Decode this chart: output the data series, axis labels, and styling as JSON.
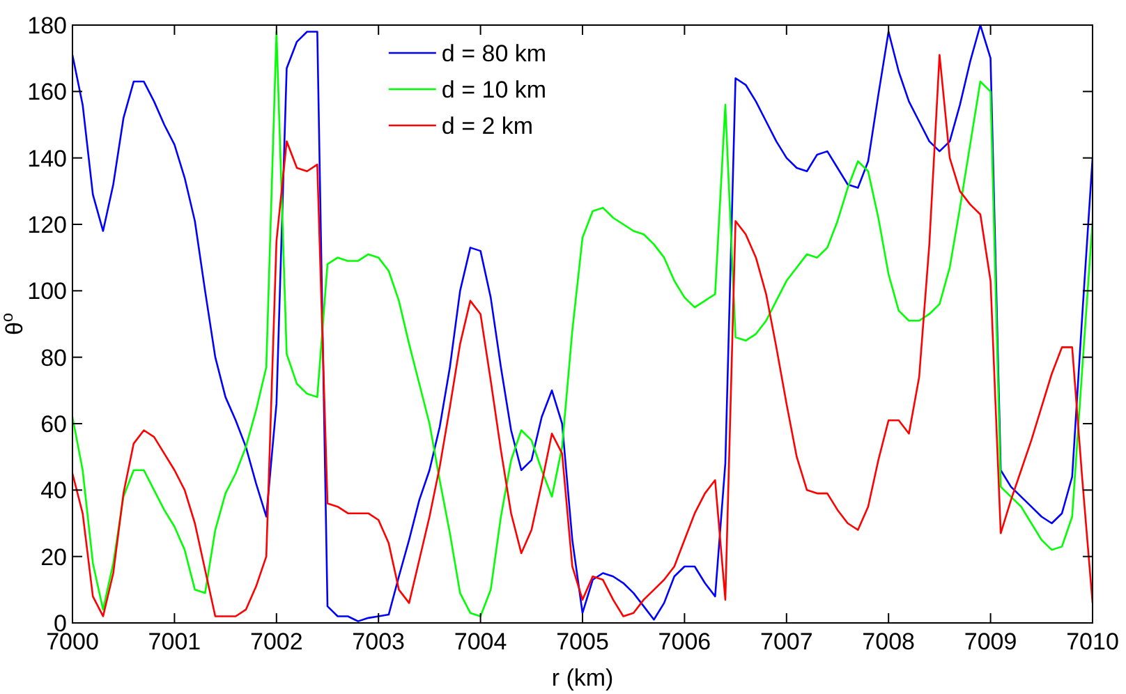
{
  "chart_data": {
    "type": "line",
    "xlabel": "r (km)",
    "ylabel": "θ$^{o}$",
    "x": [
      7000,
      7000.1,
      7000.2,
      7000.3,
      7000.4,
      7000.5,
      7000.6,
      7000.7,
      7000.8,
      7000.9,
      7001,
      7001.1,
      7001.2,
      7001.3,
      7001.4,
      7001.5,
      7001.6,
      7001.7,
      7001.8,
      7001.9,
      7002,
      7002.1,
      7002.2,
      7002.3,
      7002.4,
      7002.5,
      7002.6,
      7002.7,
      7002.8,
      7002.9,
      7003,
      7003.1,
      7003.2,
      7003.3,
      7003.4,
      7003.5,
      7003.6,
      7003.7,
      7003.8,
      7003.9,
      7004,
      7004.1,
      7004.2,
      7004.3,
      7004.4,
      7004.5,
      7004.6,
      7004.7,
      7004.8,
      7004.9,
      7005,
      7005.1,
      7005.2,
      7005.3,
      7005.4,
      7005.5,
      7005.6,
      7005.7,
      7005.8,
      7005.9,
      7006,
      7006.1,
      7006.2,
      7006.3,
      7006.4,
      7006.5,
      7006.6,
      7006.7,
      7006.8,
      7006.9,
      7007,
      7007.1,
      7007.2,
      7007.3,
      7007.4,
      7007.5,
      7007.6,
      7007.7,
      7007.8,
      7007.9,
      7008,
      7008.1,
      7008.2,
      7008.3,
      7008.4,
      7008.5,
      7008.6,
      7008.7,
      7008.8,
      7008.9,
      7009,
      7009.1,
      7009.2,
      7009.3,
      7009.4,
      7009.5,
      7009.6,
      7009.7,
      7009.8,
      7009.9,
      7010
    ],
    "series": [
      {
        "name": "d = 80 km",
        "color": "#0000ff",
        "values": [
          171,
          156,
          129,
          118,
          132,
          152,
          163,
          163,
          157,
          150,
          144,
          134,
          121,
          100,
          80,
          68,
          61,
          53,
          42,
          32,
          66,
          167,
          175,
          178,
          178,
          5,
          2,
          2,
          0.5,
          1.5,
          2,
          2.5,
          14,
          25,
          37,
          46,
          59,
          77,
          100,
          113,
          112,
          98,
          77,
          58,
          46,
          49,
          62,
          70,
          60,
          25,
          3,
          13,
          15,
          14,
          12,
          9,
          5,
          1,
          6,
          14,
          17,
          17,
          12,
          8,
          48,
          164,
          162,
          157,
          151,
          145,
          140,
          137,
          136,
          141,
          142,
          137,
          132,
          131,
          139,
          159,
          178,
          166,
          157,
          151,
          145,
          142,
          145,
          156,
          169,
          180,
          170,
          46,
          41,
          38,
          35,
          32,
          30,
          33,
          44,
          93,
          140
        ]
      },
      {
        "name": "d = 10 km",
        "color": "#00ff00",
        "values": [
          62,
          46,
          18,
          4,
          18,
          38,
          46,
          46,
          40,
          34,
          29,
          22,
          10,
          9,
          28,
          39,
          45,
          53,
          64,
          77,
          178,
          81,
          72,
          69,
          68,
          108,
          110,
          109,
          109,
          111,
          110,
          106,
          97,
          84,
          72,
          60,
          43,
          27,
          9,
          3,
          2,
          10,
          32,
          49,
          58,
          55,
          46,
          38,
          53,
          88,
          116,
          124,
          125,
          122,
          120,
          118,
          117,
          114,
          110,
          103,
          98,
          95,
          97,
          99,
          156,
          86,
          85,
          87,
          91,
          97,
          103,
          107,
          111,
          110,
          113,
          121,
          131,
          139,
          136,
          122,
          105,
          94,
          91,
          91,
          93,
          96,
          107,
          125,
          144,
          163,
          160,
          41,
          38,
          35,
          30,
          25,
          22,
          23,
          32,
          77,
          121
        ]
      },
      {
        "name": "d = 2 km",
        "color": "#ff0000",
        "values": [
          45,
          33,
          8,
          2,
          15,
          39,
          54,
          58,
          56,
          51,
          46,
          40,
          30,
          16,
          2,
          2,
          2,
          4,
          11,
          20,
          115,
          145,
          137,
          136,
          138,
          36,
          35,
          33,
          33,
          33,
          31,
          24,
          10,
          6,
          19,
          32,
          47,
          65,
          84,
          97,
          93,
          73,
          52,
          33,
          21,
          28,
          42,
          57,
          51,
          17,
          7,
          14,
          13,
          7,
          2,
          3,
          7,
          10,
          13,
          17,
          25,
          33,
          39,
          43,
          7,
          121,
          117,
          110,
          99,
          83,
          66,
          50,
          40,
          39,
          39,
          34,
          30,
          28,
          35,
          49,
          61,
          61,
          57,
          74,
          114,
          171,
          140,
          130,
          126,
          123,
          103,
          27,
          37,
          46,
          55,
          65,
          75,
          83,
          83,
          43,
          6
        ]
      }
    ],
    "xlim": [
      7000,
      7010
    ],
    "xticks": [
      7000,
      7001,
      7002,
      7003,
      7004,
      7005,
      7006,
      7007,
      7008,
      7009,
      7010
    ],
    "ylim": [
      0,
      180
    ],
    "yticks": [
      0,
      20,
      40,
      60,
      80,
      100,
      120,
      140,
      160,
      180
    ],
    "legend": "top",
    "grid": false,
    "marker": "none",
    "line_style": "solid"
  }
}
